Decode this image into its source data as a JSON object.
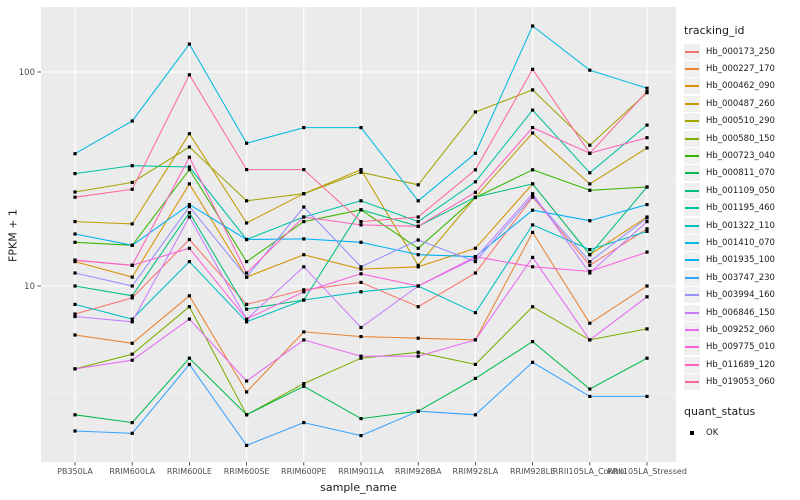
{
  "style": {
    "panel_bg": "#EBEBEB",
    "grid_major_color": "#FFFFFF",
    "grid_minor_color": "#FFFFFF",
    "tick_label_color": "#4D4D4D",
    "axis_title_color": "#1A1A1A",
    "tick_mark_color": "#333333",
    "point_color": "#000000",
    "legend_key_bg": "#F0F0F0"
  },
  "chart_data": {
    "type": "line",
    "title": "",
    "xlabel": "sample_name",
    "ylabel": "FPKM + 1",
    "y_scale": "log10",
    "y_major_ticks": [
      100,
      10
    ],
    "y_minor_gridlines": [
      31.62,
      3.162
    ],
    "ylim": [
      1.5,
      195
    ],
    "grid": true,
    "legend_position": "right",
    "color_legend": {
      "title": "tracking_id"
    },
    "shape_legend": {
      "title": "quant_status",
      "items": [
        {
          "label": "OK",
          "marker": "black-square"
        }
      ]
    },
    "marker": "black-square",
    "x_categories": [
      "PB350LA",
      "RRIM600LA",
      "RRIM600LE",
      "RRIM600SE",
      "RRIM600PE",
      "RRIM901LA",
      "RRIM928BA",
      "RRIM928LA",
      "RRIM928LE",
      "RRII105LA_Control",
      "RRII105LA_Stressed"
    ],
    "series": [
      {
        "name": "Hb_000173_250",
        "color": "#F8766D",
        "values": [
          7.4,
          8.8,
          16.5,
          8.2,
          9.6,
          10.4,
          8.0,
          11.5,
          26.0,
          12.5,
          18.5
        ]
      },
      {
        "name": "Hb_000227_170",
        "color": "#EA8331",
        "values": [
          5.9,
          5.4,
          9.0,
          3.2,
          6.1,
          5.8,
          5.7,
          5.6,
          17.8,
          6.7,
          10.0
        ]
      },
      {
        "name": "Hb_000462_090",
        "color": "#D89000",
        "values": [
          13.0,
          11.0,
          30.0,
          11.0,
          14.0,
          12.0,
          12.3,
          15.0,
          30.0,
          14.0,
          21.0
        ]
      },
      {
        "name": "Hb_000487_260",
        "color": "#C09B00",
        "values": [
          20.0,
          19.5,
          51.5,
          19.7,
          27.0,
          35.0,
          12.5,
          26.0,
          51.9,
          30.0,
          44.2
        ]
      },
      {
        "name": "Hb_000510_290",
        "color": "#A3A500",
        "values": [
          27.5,
          30.5,
          44.6,
          25.0,
          27.0,
          34.0,
          29.7,
          65.0,
          82.5,
          45.5,
          80.0
        ]
      },
      {
        "name": "Hb_000580_150",
        "color": "#7CAE00",
        "values": [
          4.1,
          4.8,
          8.0,
          2.5,
          3.5,
          4.6,
          4.9,
          4.3,
          8.0,
          5.6,
          6.3
        ]
      },
      {
        "name": "Hb_000723_040",
        "color": "#39B600",
        "values": [
          16.0,
          15.5,
          35.0,
          13.0,
          20.0,
          22.7,
          15.0,
          25.9,
          34.9,
          28.0,
          29.0
        ]
      },
      {
        "name": "Hb_000811_070",
        "color": "#00BB4E",
        "values": [
          2.5,
          2.3,
          4.6,
          2.5,
          3.4,
          2.4,
          2.6,
          3.7,
          5.5,
          3.3,
          4.6
        ]
      },
      {
        "name": "Hb_001109_050",
        "color": "#00BF7D",
        "values": [
          10.0,
          9.0,
          22.0,
          7.8,
          8.6,
          22.7,
          19.0,
          26.0,
          30.0,
          14.0,
          29.0
        ]
      },
      {
        "name": "Hb_001195_460",
        "color": "#00C1A3",
        "values": [
          33.5,
          36.5,
          36.0,
          16.5,
          21.0,
          25.0,
          20.0,
          30.7,
          66.4,
          33.8,
          56.5
        ]
      },
      {
        "name": "Hb_001322_110",
        "color": "#00BFC4",
        "values": [
          8.2,
          7.0,
          13.0,
          6.8,
          8.6,
          9.4,
          10.0,
          7.5,
          19.3,
          14.8,
          18.0
        ]
      },
      {
        "name": "Hb_001410_070",
        "color": "#00BAE0",
        "values": [
          41.5,
          59.0,
          135.0,
          46.5,
          55.0,
          55.0,
          25.0,
          41.7,
          164.0,
          102.0,
          84.0
        ]
      },
      {
        "name": "Hb_001935_100",
        "color": "#00B0F6",
        "values": [
          17.5,
          15.5,
          24.0,
          16.5,
          16.6,
          16.0,
          14.0,
          13.7,
          22.6,
          20.2,
          24.0
        ]
      },
      {
        "name": "Hb_003747_230",
        "color": "#35A2FF",
        "values": [
          2.1,
          2.05,
          4.3,
          1.8,
          2.3,
          2.0,
          2.6,
          2.5,
          4.4,
          3.05,
          3.05
        ]
      },
      {
        "name": "Hb_003994_160",
        "color": "#9590FF",
        "values": [
          11.5,
          10.0,
          23.5,
          11.0,
          23.4,
          12.3,
          16.4,
          13.0,
          26.3,
          13.0,
          20.8
        ]
      },
      {
        "name": "Hb_006846_150",
        "color": "#C77CFF",
        "values": [
          7.2,
          6.8,
          21.0,
          7.0,
          12.3,
          6.4,
          10.0,
          13.5,
          27.0,
          11.5,
          20.0
        ]
      },
      {
        "name": "Hb_009252_060",
        "color": "#E76BF3",
        "values": [
          4.1,
          4.5,
          7.0,
          3.6,
          5.6,
          4.7,
          4.7,
          5.6,
          13.6,
          5.6,
          8.9
        ]
      },
      {
        "name": "Hb_009775_010",
        "color": "#FA62DB",
        "values": [
          13.2,
          12.5,
          15.0,
          7.0,
          9.4,
          11.4,
          10.0,
          13.7,
          12.3,
          11.7,
          14.4
        ]
      },
      {
        "name": "Hb_011689_120",
        "color": "#FF62BC",
        "values": [
          13.2,
          12.5,
          40.0,
          11.5,
          21.0,
          19.3,
          19.0,
          27.4,
          55.0,
          41.7,
          49.3
        ]
      },
      {
        "name": "Hb_019053_060",
        "color": "#FF6A98",
        "values": [
          26.0,
          28.3,
          97.0,
          35.0,
          35.0,
          20.0,
          21.0,
          34.9,
          103.0,
          41.7,
          81.0
        ]
      }
    ]
  }
}
